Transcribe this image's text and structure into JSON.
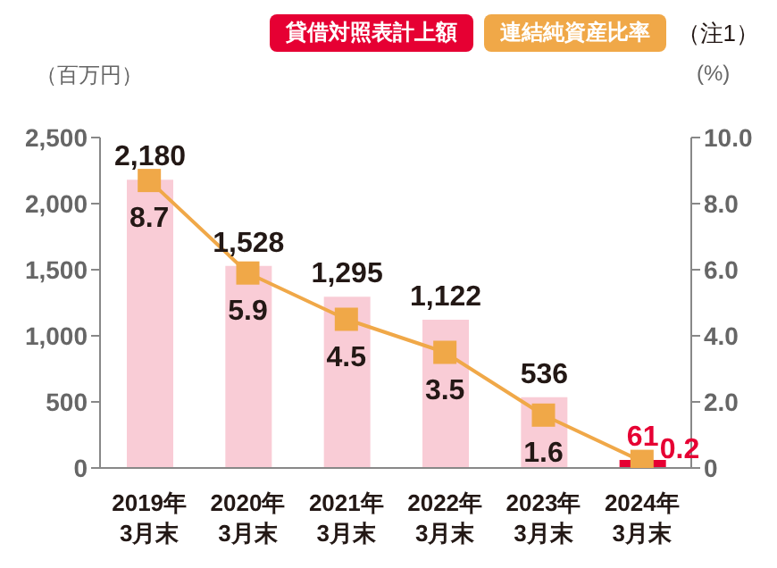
{
  "chart_data": {
    "type": "bar",
    "categories": [
      "2019年\n3月末",
      "2020年\n3月末",
      "2021年\n3月末",
      "2022年\n3月末",
      "2023年\n3月末",
      "2024年\n3月末"
    ],
    "ylabel": "（百万円）",
    "y2label": "(%)",
    "annotations": [
      "（注1）"
    ],
    "series": [
      {
        "name": "貸借対照表計上額",
        "color": "#e60033",
        "colors": [
          "#f9ccd6",
          "#f9ccd6",
          "#f9ccd6",
          "#f9ccd6",
          "#f9ccd6",
          "#e60033"
        ],
        "values": [
          2180,
          1528,
          1295,
          1122,
          536,
          61
        ],
        "value_labels": [
          "2,180",
          "1,528",
          "1,295",
          "1,122",
          "536",
          "61"
        ]
      },
      {
        "name": "連結純資産比率",
        "type": "line",
        "axis": "y2",
        "color": "#f0a848",
        "values": [
          8.7,
          5.9,
          4.5,
          3.5,
          1.6,
          0.2
        ],
        "value_labels": [
          "8.7",
          "5.9",
          "4.5",
          "3.5",
          "1.6",
          "0.2"
        ]
      }
    ],
    "ylim": [
      0,
      2500
    ],
    "yticks": [
      0,
      {
        "value": 500,
        "label": "500"
      },
      {
        "value": 1000,
        "label": "1,000"
      },
      {
        "value": 1500,
        "label": "1,500"
      },
      {
        "value": 2000,
        "label": "2,000"
      },
      {
        "value": 2500,
        "label": "2,500"
      }
    ],
    "y2lim": [
      0,
      10
    ],
    "y2ticks": [
      0,
      {
        "value": 2,
        "label": "2.0"
      },
      {
        "value": 4,
        "label": "4.0"
      },
      {
        "value": 6,
        "label": "6.0"
      },
      {
        "value": 8,
        "label": "8.0"
      },
      {
        "value": 10,
        "label": "10.0"
      }
    ],
    "marker": "square",
    "legend": "top right"
  }
}
